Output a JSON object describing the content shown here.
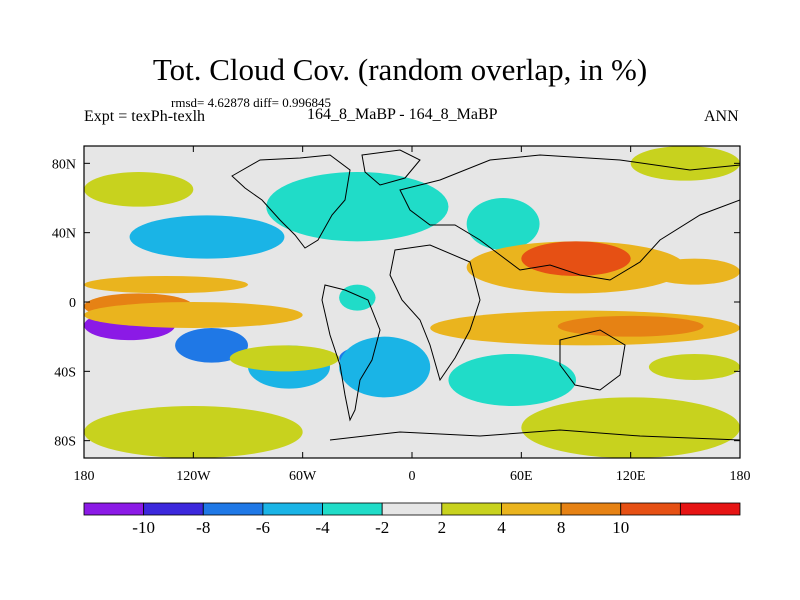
{
  "header": {
    "title": "Tot. Cloud Cov. (random overlap, in %)",
    "stats": "rmsd= 4.62878 diff= 0.996845",
    "experiment": "Expt = texPh-texlh",
    "comparison": "164_8_MaBP - 164_8_MaBP",
    "season": "ANN"
  },
  "colors": {
    "bins": [
      "#8b1ae6",
      "#3c28dc",
      "#1f78e6",
      "#1ab4e6",
      "#20dcc8",
      "#e6e6e6",
      "#c8d21e",
      "#eab41e",
      "#e68214",
      "#e65014",
      "#e61414"
    ],
    "coastline": "#000000",
    "background": "#e6e6e6"
  },
  "chart_data": {
    "type": "heatmap",
    "title": "Tot. Cloud Cov. (random overlap, in %)",
    "xlabel": "",
    "ylabel": "",
    "xlim": [
      -180,
      180
    ],
    "ylim": [
      -90,
      90
    ],
    "x_ticks": [
      {
        "value": -180,
        "label": "180"
      },
      {
        "value": -120,
        "label": "120W"
      },
      {
        "value": -60,
        "label": "60W"
      },
      {
        "value": 0,
        "label": "0"
      },
      {
        "value": 60,
        "label": "60E"
      },
      {
        "value": 120,
        "label": "120E"
      },
      {
        "value": 180,
        "label": "180"
      }
    ],
    "y_ticks": [
      {
        "value": 80,
        "label": "80N"
      },
      {
        "value": 40,
        "label": "40N"
      },
      {
        "value": 0,
        "label": "0"
      },
      {
        "value": -40,
        "label": "40S"
      },
      {
        "value": -80,
        "label": "80S"
      }
    ],
    "colorbar": {
      "boundaries": [
        -10,
        -8,
        -6,
        -4,
        -2,
        2,
        4,
        8,
        10
      ],
      "labels": [
        "-10",
        "-8",
        "-6",
        "-4",
        "-2",
        "2",
        "4",
        "8",
        "10"
      ]
    },
    "field_regions": [
      {
        "lon": [
          -180,
          -130
        ],
        "lat": [
          -22,
          -5
        ],
        "value": -11
      },
      {
        "lon": [
          -130,
          -90
        ],
        "lat": [
          -35,
          -15
        ],
        "value": -8
      },
      {
        "lon": [
          -40,
          -5
        ],
        "lat": [
          -40,
          -25
        ],
        "value": -8
      },
      {
        "lon": [
          -90,
          -45
        ],
        "lat": [
          -50,
          -25
        ],
        "value": -5
      },
      {
        "lon": [
          -40,
          10
        ],
        "lat": [
          -55,
          -20
        ],
        "value": -5
      },
      {
        "lon": [
          -155,
          -70
        ],
        "lat": [
          25,
          50
        ],
        "value": -5
      },
      {
        "lon": [
          -80,
          20
        ],
        "lat": [
          35,
          75
        ],
        "value": -3
      },
      {
        "lon": [
          30,
          70
        ],
        "lat": [
          30,
          60
        ],
        "value": -3
      },
      {
        "lon": [
          -40,
          -20
        ],
        "lat": [
          -5,
          10
        ],
        "value": -3
      },
      {
        "lon": [
          20,
          90
        ],
        "lat": [
          -60,
          -30
        ],
        "value": -3
      },
      {
        "lon": [
          -180,
          -90
        ],
        "lat": [
          5,
          15
        ],
        "value": 6
      },
      {
        "lon": [
          -180,
          -120
        ],
        "lat": [
          -10,
          5
        ],
        "value": 9
      },
      {
        "lon": [
          -180,
          -60
        ],
        "lat": [
          -15,
          0
        ],
        "value": 5
      },
      {
        "lon": [
          -100,
          -40
        ],
        "lat": [
          -40,
          -25
        ],
        "value": 3
      },
      {
        "lon": [
          30,
          150
        ],
        "lat": [
          5,
          35
        ],
        "value": 6
      },
      {
        "lon": [
          60,
          120
        ],
        "lat": [
          15,
          35
        ],
        "value": 11
      },
      {
        "lon": [
          10,
          180
        ],
        "lat": [
          -25,
          -5
        ],
        "value": 6
      },
      {
        "lon": [
          80,
          160
        ],
        "lat": [
          -20,
          -8
        ],
        "value": 9
      },
      {
        "lon": [
          130,
          180
        ],
        "lat": [
          10,
          25
        ],
        "value": 6
      },
      {
        "lon": [
          -180,
          -60
        ],
        "lat": [
          -90,
          -60
        ],
        "value": 3
      },
      {
        "lon": [
          60,
          180
        ],
        "lat": [
          -90,
          -55
        ],
        "value": 3
      },
      {
        "lon": [
          -180,
          -120
        ],
        "lat": [
          55,
          75
        ],
        "value": 3
      },
      {
        "lon": [
          130,
          180
        ],
        "lat": [
          -45,
          -30
        ],
        "value": 3
      },
      {
        "lon": [
          120,
          180
        ],
        "lat": [
          70,
          90
        ],
        "value": 3
      }
    ]
  }
}
